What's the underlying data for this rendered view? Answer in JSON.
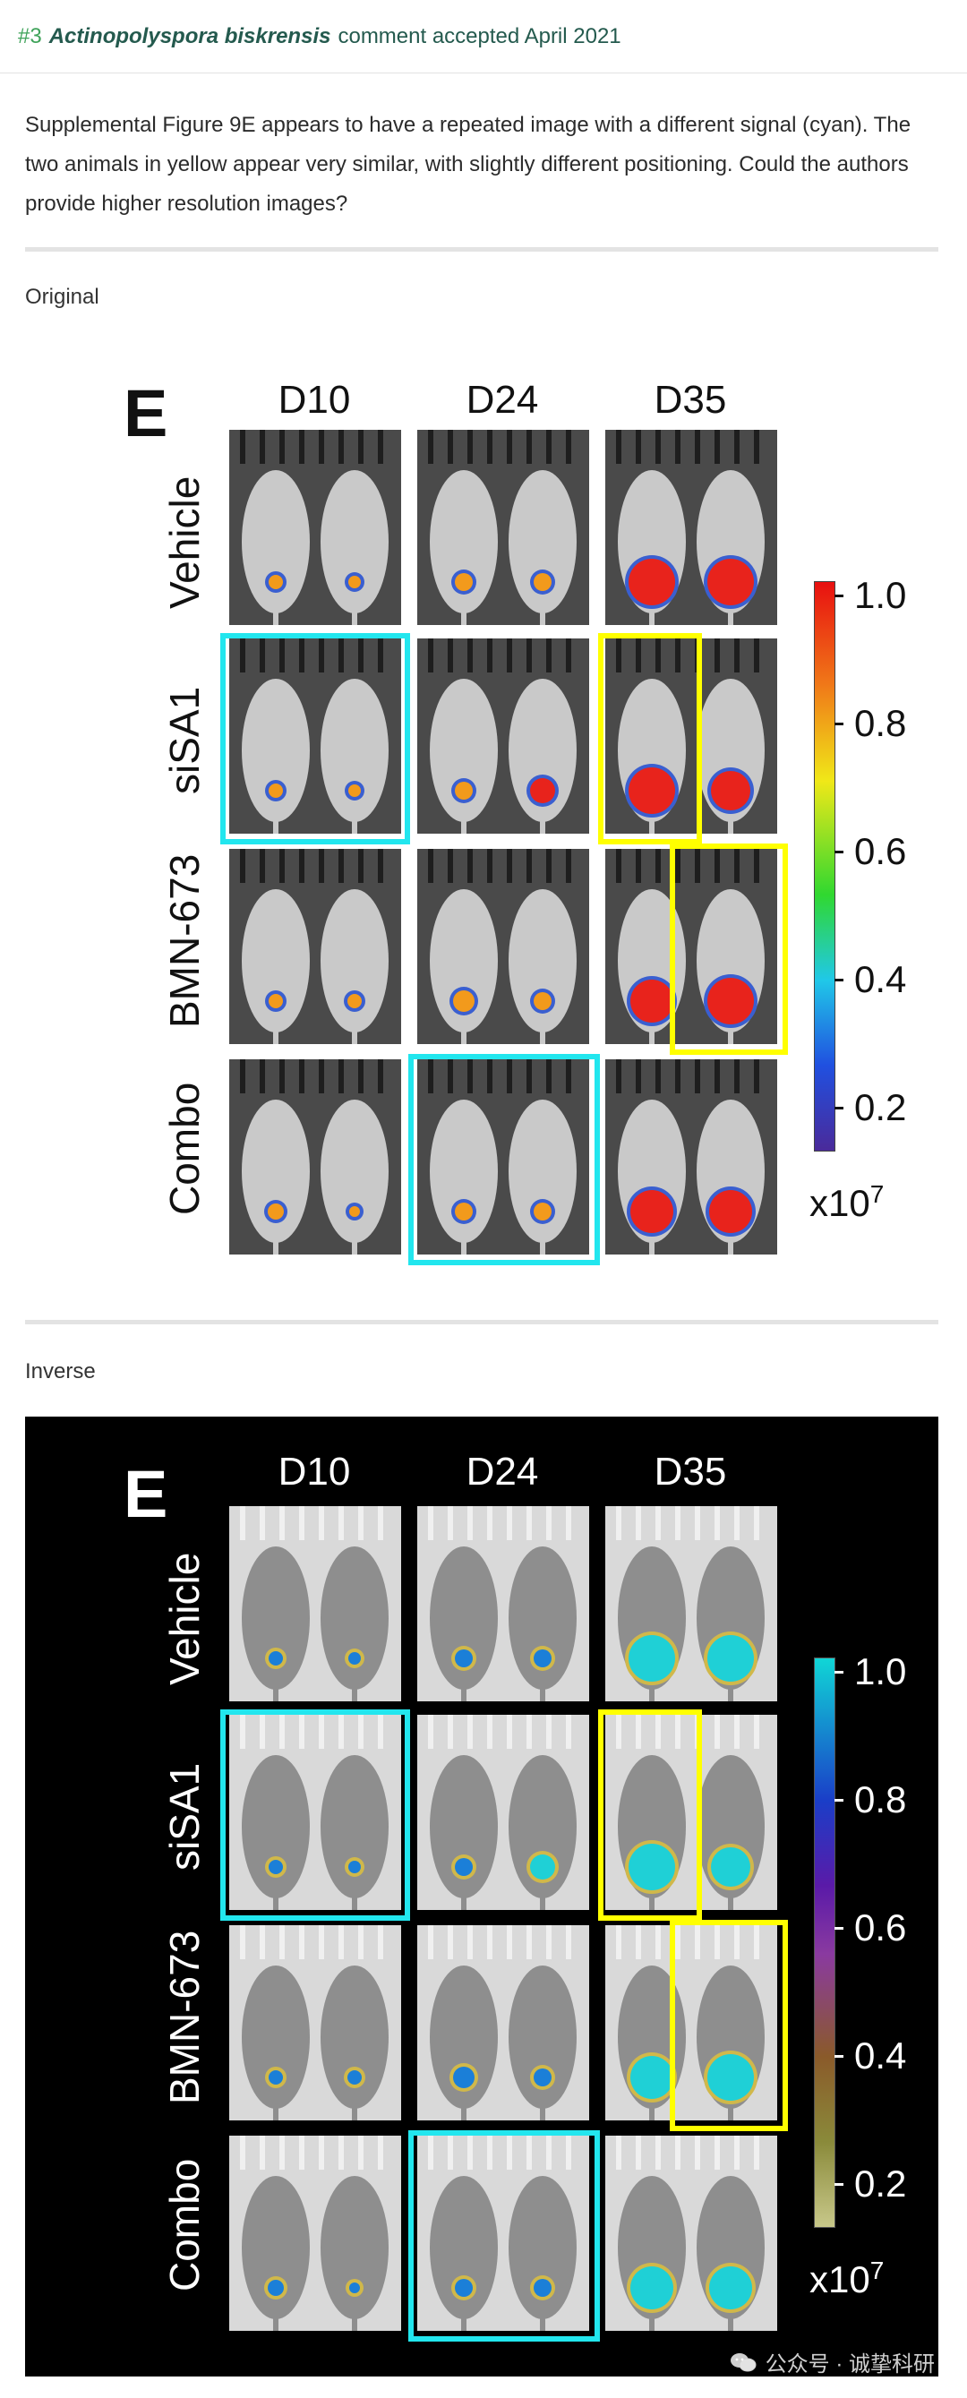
{
  "header": {
    "number": "#3",
    "species": "Actinopolyspora biskrensis",
    "status": "comment accepted April 2021"
  },
  "comment": "Supplemental Figure 9E appears to have a repeated image with a different signal (cyan). The two animals in yellow appear very similar, with slightly different positioning. Could the authors provide higher resolution images?",
  "sections": {
    "original_label": "Original",
    "inverse_label": "Inverse"
  },
  "figure": {
    "letter": "E",
    "columns": [
      "D10",
      "D24",
      "D35"
    ],
    "rows": [
      "Vehicle",
      "siSA1",
      "BMN-673",
      "Combo"
    ],
    "colorbar_ticks": [
      "1.0",
      "0.8",
      "0.6",
      "0.4",
      "0.2"
    ],
    "colorbar_unit_base": "x10",
    "colorbar_unit_exp": "7"
  },
  "colors": {
    "highlight_cyan": "#22e6ee",
    "highlight_yellow": "#ffff00",
    "header_number": "#3fa35a",
    "header_text": "#245a4e"
  },
  "watermark": {
    "icon": "wechat-icon",
    "text": "公众号 · 诚挚科研"
  }
}
